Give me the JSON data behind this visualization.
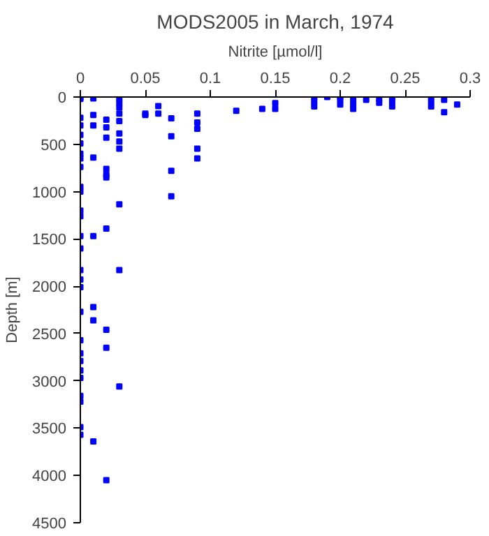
{
  "chart_data": {
    "type": "scatter",
    "title": "MODS2005 in March, 1974",
    "xlabel": "Nitrite [µmol/l]",
    "ylabel": "Depth [m]",
    "xlim": [
      0,
      0.3
    ],
    "ylim": [
      4500,
      0
    ],
    "xticks": [
      0,
      0.05,
      0.1,
      0.15,
      0.2,
      0.25,
      0.3
    ],
    "yticks": [
      0,
      500,
      1000,
      1500,
      2000,
      2500,
      3000,
      3500,
      4000,
      4500
    ],
    "grid": false,
    "marker": "square",
    "series": [
      {
        "color": "#0000ff",
        "x": [
          0,
          0,
          0,
          0,
          0,
          0,
          0,
          0,
          0,
          0,
          0,
          0,
          0,
          0,
          0,
          0,
          0,
          0,
          0,
          0,
          0,
          0,
          0,
          0,
          0,
          0,
          0,
          0,
          0.01,
          0.01,
          0.01,
          0.01,
          0.01,
          0.01,
          0.01,
          0.01,
          0.02,
          0.02,
          0.02,
          0.02,
          0.02,
          0.02,
          0.02,
          0.02,
          0.02,
          0.02,
          0.03,
          0.03,
          0.03,
          0.03,
          0.03,
          0.03,
          0.03,
          0.03,
          0.03,
          0.03,
          0.03,
          0.05,
          0.05,
          0.06,
          0.06,
          0.07,
          0.07,
          0.07,
          0.07,
          0.09,
          0.09,
          0.09,
          0.09,
          0.09,
          0.12,
          0.14,
          0.15,
          0.15,
          0.18,
          0.18,
          0.18,
          0.19,
          0.2,
          0.2,
          0.2,
          0.21,
          0.21,
          0.21,
          0.22,
          0.23,
          0.23,
          0.24,
          0.24,
          0.24,
          0.27,
          0.27,
          0.27,
          0.28,
          0.28,
          0.29
        ],
        "values": [
          20,
          220,
          300,
          400,
          490,
          600,
          650,
          740,
          950,
          1000,
          1200,
          1260,
          1470,
          1600,
          1830,
          1930,
          2010,
          2270,
          2570,
          2710,
          2790,
          2890,
          2970,
          3160,
          3220,
          3490,
          3570,
          10,
          15,
          190,
          300,
          640,
          1470,
          2220,
          2360,
          3640,
          240,
          320,
          430,
          760,
          820,
          850,
          1390,
          2460,
          2650,
          4050,
          15,
          60,
          110,
          175,
          255,
          385,
          470,
          545,
          1135,
          1830,
          3060,
          175,
          190,
          95,
          175,
          225,
          415,
          780,
          1050,
          175,
          270,
          335,
          545,
          650,
          145,
          125,
          65,
          125,
          0,
          50,
          100,
          0,
          0,
          30,
          80,
          30,
          75,
          125,
          30,
          20,
          60,
          0,
          50,
          100,
          0,
          50,
          100,
          30,
          160,
          80
        ]
      }
    ]
  }
}
